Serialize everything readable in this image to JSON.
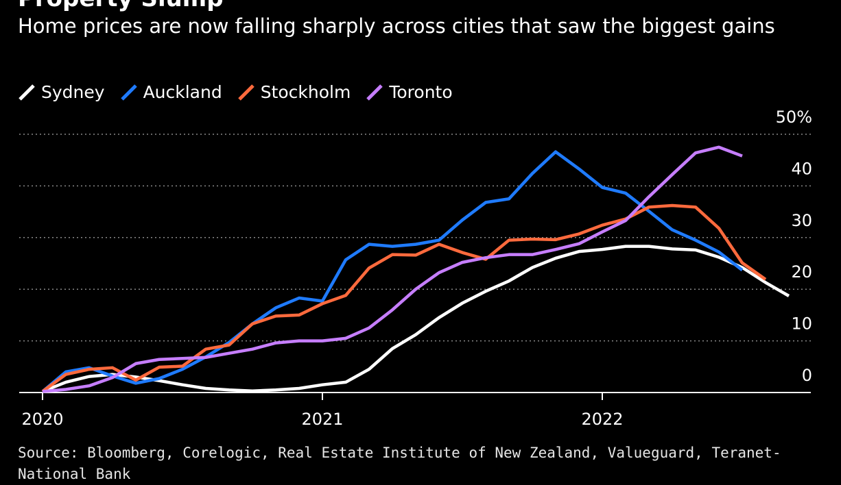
{
  "header": {
    "title": "Property Slump",
    "subtitle": "Home prices are now falling sharply across cities that saw the biggest gains"
  },
  "footer": {
    "source": "Source: Bloomberg, Corelogic, Real Estate Institute of New Zealand, Valueguard, Teranet-National Bank"
  },
  "chart_data": {
    "type": "line",
    "title": "Property Slump",
    "subtitle": "Home prices are now falling sharply across cities that saw the biggest gains",
    "x_ticks": [
      "2020",
      "2021",
      "2022"
    ],
    "y_ticks": [
      "50%",
      "40",
      "30",
      "20",
      "10",
      "0"
    ],
    "ylim": [
      0,
      50
    ],
    "grid": true,
    "legend_position": "top-left",
    "series": [
      {
        "name": "Sydney",
        "color": "#ffffff",
        "values": [
          0.2,
          2.0,
          3.1,
          3.5,
          3.0,
          2.3,
          1.5,
          0.8,
          0.5,
          0.3,
          0.5,
          0.8,
          1.5,
          2.0,
          4.5,
          8.5,
          11.2,
          14.5,
          17.3,
          19.6,
          21.6,
          24.2,
          26.0,
          27.3,
          27.7,
          28.3,
          28.3,
          27.8,
          27.6,
          26.2,
          24.2,
          21.3,
          18.7
        ]
      },
      {
        "name": "Auckland",
        "color": "#1f7bff",
        "values": [
          0.2,
          4.0,
          4.8,
          3.2,
          1.8,
          2.7,
          4.5,
          6.9,
          9.7,
          13.3,
          16.4,
          18.3,
          17.7,
          25.7,
          28.7,
          28.3,
          28.7,
          29.5,
          33.4,
          36.8,
          37.5,
          42.4,
          46.6,
          43.3,
          39.7,
          38.6,
          35.1,
          31.5,
          29.5,
          27.2,
          23.7
        ]
      },
      {
        "name": "Stockholm",
        "color": "#ff6a3d",
        "values": [
          0.2,
          3.5,
          4.5,
          4.8,
          2.4,
          4.9,
          5.1,
          8.4,
          9.2,
          13.3,
          14.8,
          15.0,
          17.2,
          18.8,
          24.1,
          26.7,
          26.6,
          28.7,
          27.1,
          25.8,
          29.5,
          29.7,
          29.6,
          30.7,
          32.4,
          33.6,
          35.9,
          36.2,
          35.9,
          31.8,
          25.1,
          21.9
        ]
      },
      {
        "name": "Toronto",
        "color": "#c67eff",
        "values": [
          0.2,
          0.6,
          1.3,
          2.9,
          5.6,
          6.4,
          6.6,
          6.8,
          7.6,
          8.4,
          9.6,
          10.0,
          10.0,
          10.5,
          12.5,
          16.0,
          20.0,
          23.2,
          25.2,
          26.1,
          26.7,
          26.7,
          27.7,
          28.8,
          31.1,
          33.3,
          37.9,
          42.2,
          46.4,
          47.5,
          45.8
        ]
      }
    ]
  }
}
